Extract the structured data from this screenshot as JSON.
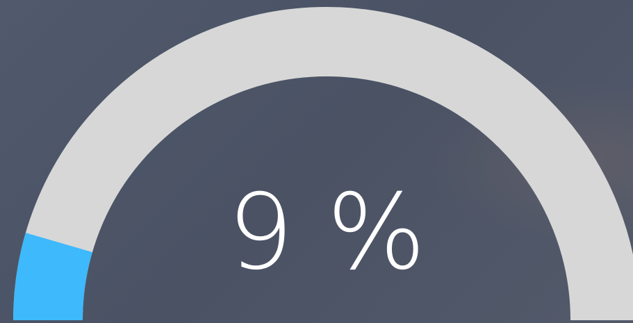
{
  "chart_data": {
    "type": "gauge",
    "values": [
      9
    ],
    "value_labels": [
      "9 %"
    ],
    "ylim": [
      0,
      100
    ],
    "color": "#3db9fc",
    "track_color": "#d7d7d7"
  }
}
